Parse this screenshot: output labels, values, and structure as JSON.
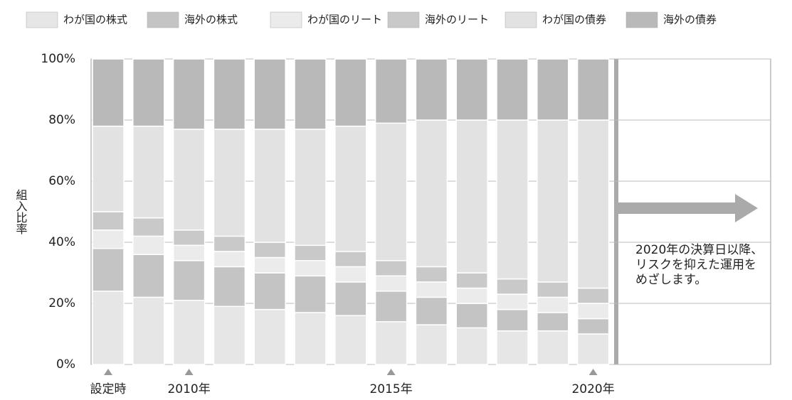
{
  "chart_data": {
    "type": "stacked_bar",
    "y_label": "組入比率",
    "categories": [
      "設定時",
      null,
      "2010年",
      null,
      null,
      null,
      null,
      "2015年",
      null,
      null,
      null,
      null,
      "2020年"
    ],
    "series": [
      {
        "name": "わが国の株式",
        "color": "#e6e6e6",
        "values": [
          24,
          22,
          21,
          19,
          18,
          17,
          16,
          14,
          13,
          12,
          11,
          11,
          10
        ]
      },
      {
        "name": "海外の株式",
        "color": "#c4c4c4",
        "values": [
          14,
          14,
          13,
          13,
          12,
          12,
          11,
          10,
          9,
          8,
          7,
          6,
          5
        ]
      },
      {
        "name": "わが国のリート",
        "color": "#ebebeb",
        "values": [
          6,
          6,
          5,
          5,
          5,
          5,
          5,
          5,
          5,
          5,
          5,
          5,
          5
        ]
      },
      {
        "name": "海外のリート",
        "color": "#c9c9c9",
        "values": [
          6,
          6,
          5,
          5,
          5,
          5,
          5,
          5,
          5,
          5,
          5,
          5,
          5
        ]
      },
      {
        "name": "わが国の債券",
        "color": "#e2e2e2",
        "values": [
          28,
          30,
          33,
          35,
          37,
          38,
          41,
          45,
          48,
          50,
          52,
          53,
          55
        ]
      },
      {
        "name": "海外の債券",
        "color": "#b9b9b9",
        "values": [
          22,
          22,
          23,
          23,
          23,
          23,
          22,
          21,
          20,
          20,
          20,
          20,
          20
        ]
      }
    ],
    "ylim": [
      0,
      100
    ],
    "yticks": [
      {
        "value": 0,
        "label": "0%"
      },
      {
        "value": 20,
        "label": "20%"
      },
      {
        "value": 40,
        "label": "40%"
      },
      {
        "value": 60,
        "label": "60%"
      },
      {
        "value": 80,
        "label": "80%"
      },
      {
        "value": 100,
        "label": "100%"
      }
    ],
    "grid": true,
    "annotation": [
      "2020年の決算日以降、",
      "リスクを抑えた運用を",
      "めざします。"
    ]
  }
}
